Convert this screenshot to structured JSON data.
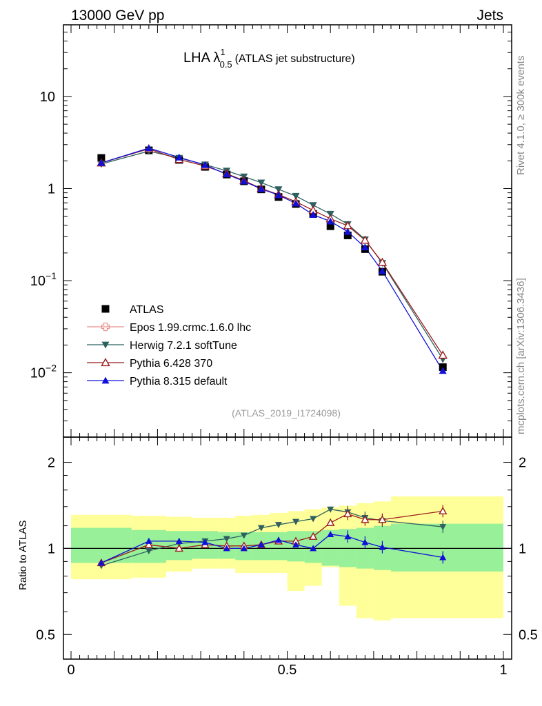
{
  "header": {
    "left": "13000 GeV pp",
    "right": "Jets"
  },
  "side_labels": {
    "top": "Rivet 4.1.0, ≥ 300k events",
    "bottom": "mcplots.cern.ch [arXiv:1306.3436]"
  },
  "colors": {
    "atlas": "#000000",
    "epos": "#e8908c",
    "herwig": "#2e6060",
    "pythia6": "#9b1c1c",
    "pythia8": "#1010d8",
    "band_inner": "#98f098",
    "band_outer": "#ffff99"
  },
  "chart_data": [
    {
      "type": "scatter",
      "title": "LHA λ",
      "title_sup": "1",
      "title_sub": "0.5",
      "title_suffix": "(ATLAS jet substructure)",
      "analysis_tag": "(ATLAS_2019_I1724098)",
      "yscale": "log",
      "xlim": [
        0,
        1
      ],
      "ylim": [
        0.002,
        60
      ],
      "y_ticks": [
        {
          "value": 10,
          "label": "10"
        },
        {
          "value": 1,
          "label": "1"
        },
        {
          "value": 0.1,
          "base": "10",
          "exp": "−1"
        },
        {
          "value": 0.01,
          "base": "10",
          "exp": "−2"
        }
      ],
      "legend_position": "bottom-left",
      "x": [
        0.07,
        0.18,
        0.25,
        0.31,
        0.36,
        0.4,
        0.44,
        0.48,
        0.52,
        0.56,
        0.6,
        0.64,
        0.68,
        0.72,
        0.86
      ],
      "series": [
        {
          "name": "ATLAS",
          "marker": "square",
          "values": [
            2.15,
            2.6,
            2.05,
            1.72,
            1.42,
            1.2,
            0.98,
            0.81,
            0.68,
            0.53,
            0.39,
            0.31,
            0.22,
            0.125,
            0.0115
          ]
        },
        {
          "name": "Epos 1.99.crmc.1.6.0 lhc",
          "marker": "open-cross",
          "values": []
        },
        {
          "name": "Herwig 7.2.1 softTune",
          "marker": "down-triangle",
          "values": [
            1.85,
            2.55,
            2.15,
            1.82,
            1.56,
            1.35,
            1.16,
            0.98,
            0.83,
            0.66,
            0.53,
            0.41,
            0.28,
            0.155,
            0.014
          ]
        },
        {
          "name": "Pythia 6.428 370",
          "marker": "open-triangle",
          "values": [
            1.9,
            2.7,
            2.07,
            1.76,
            1.45,
            1.22,
            1.0,
            0.86,
            0.72,
            0.58,
            0.47,
            0.395,
            0.275,
            0.158,
            0.0155
          ]
        },
        {
          "name": "Pythia 8.315 default",
          "marker": "up-triangle",
          "values": [
            1.9,
            2.75,
            2.18,
            1.8,
            1.43,
            1.2,
            0.99,
            0.85,
            0.69,
            0.52,
            0.44,
            0.34,
            0.23,
            0.127,
            0.0105
          ]
        }
      ]
    },
    {
      "type": "scatter",
      "ylabel": "Ratio to ATLAS",
      "yscale": "log",
      "xlim": [
        0,
        1
      ],
      "ylim": [
        0.41,
        2.45
      ],
      "y_ticks": [
        {
          "value": 2,
          "label": "2"
        },
        {
          "value": 1,
          "label": "1"
        },
        {
          "value": 0.5,
          "label": "0.5"
        }
      ],
      "x_ticks": [
        {
          "value": 0,
          "label": "0"
        },
        {
          "value": 0.5,
          "label": "0.5"
        },
        {
          "value": 1,
          "label": "1"
        }
      ],
      "bin_edges": [
        0,
        0.14,
        0.22,
        0.28,
        0.34,
        0.38,
        0.42,
        0.46,
        0.5,
        0.54,
        0.58,
        0.62,
        0.66,
        0.7,
        0.74,
        1.0
      ],
      "band_inner": [
        [
          0.89,
          1.18
        ],
        [
          0.89,
          1.16
        ],
        [
          0.91,
          1.15
        ],
        [
          0.92,
          1.15
        ],
        [
          0.92,
          1.14
        ],
        [
          0.91,
          1.14
        ],
        [
          0.91,
          1.14
        ],
        [
          0.91,
          1.14
        ],
        [
          0.9,
          1.15
        ],
        [
          0.89,
          1.15
        ],
        [
          0.87,
          1.16
        ],
        [
          0.86,
          1.17
        ],
        [
          0.85,
          1.18
        ],
        [
          0.84,
          1.2
        ],
        [
          0.83,
          1.22
        ]
      ],
      "band_outer": [
        [
          0.78,
          1.31
        ],
        [
          0.79,
          1.3
        ],
        [
          0.83,
          1.29
        ],
        [
          0.85,
          1.28
        ],
        [
          0.85,
          1.28
        ],
        [
          0.82,
          1.3
        ],
        [
          0.82,
          1.31
        ],
        [
          0.82,
          1.33
        ],
        [
          0.71,
          1.35
        ],
        [
          0.74,
          1.37
        ],
        [
          0.86,
          1.39
        ],
        [
          0.63,
          1.41
        ],
        [
          0.57,
          1.44
        ],
        [
          0.56,
          1.46
        ],
        [
          0.57,
          1.52
        ]
      ],
      "reference_line": 1,
      "series": [
        {
          "name": "Herwig 7.2.1 softTune",
          "marker": "down-triangle",
          "values": [
            0.87,
            0.98,
            1.04,
            1.06,
            1.08,
            1.11,
            1.18,
            1.21,
            1.24,
            1.27,
            1.37,
            1.34,
            1.28,
            1.25,
            1.19
          ]
        },
        {
          "name": "Pythia 6.428 370",
          "marker": "open-triangle",
          "values": [
            0.89,
            1.03,
            1.0,
            1.03,
            1.02,
            1.02,
            1.03,
            1.06,
            1.06,
            1.1,
            1.23,
            1.32,
            1.26,
            1.26,
            1.35
          ]
        },
        {
          "name": "Pythia 8.315 default",
          "marker": "up-triangle",
          "values": [
            0.89,
            1.06,
            1.06,
            1.05,
            1.0,
            1.0,
            1.03,
            1.07,
            1.03,
            1.0,
            1.12,
            1.1,
            1.05,
            1.01,
            0.93
          ]
        }
      ]
    }
  ]
}
